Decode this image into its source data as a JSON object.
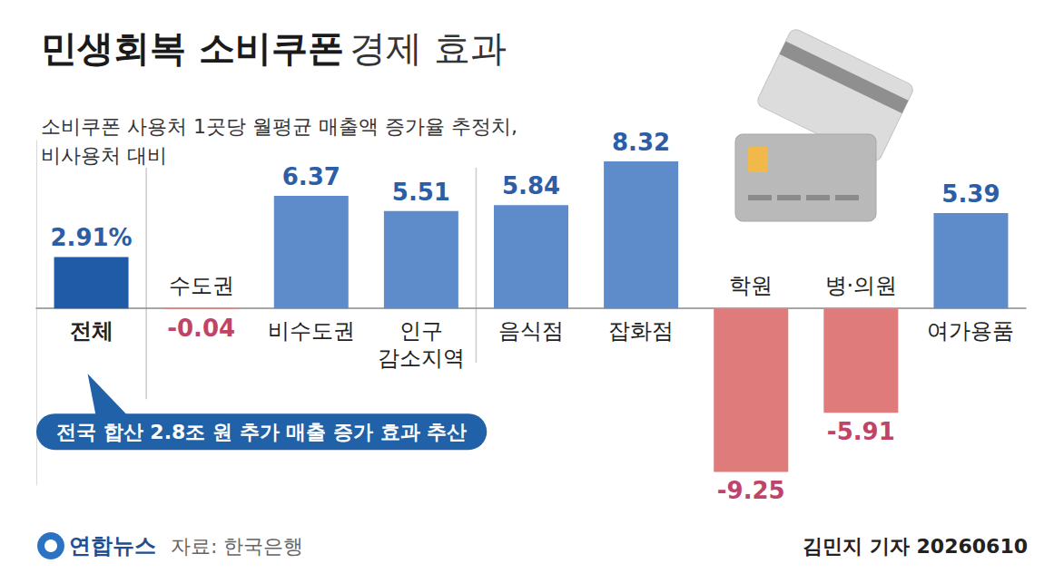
{
  "chart_data": {
    "type": "bar",
    "title": "민생회복 소비쿠폰 경제 효과",
    "subtitle": "소비쿠폰 사용처 1곳당 월평균 매출액 증가율 추정치,\n비사용처 대비",
    "categories": [
      "전체",
      "수도권",
      "비수도권",
      "인구 감소지역",
      "음식점",
      "잡화점",
      "학원",
      "병·의원",
      "여가용품"
    ],
    "values": [
      2.91,
      -0.04,
      6.37,
      5.51,
      5.84,
      8.32,
      -9.25,
      -5.91,
      5.39
    ],
    "value_labels": [
      "2.91%",
      "-0.04",
      "6.37",
      "5.51",
      "5.84",
      "8.32",
      "-9.25",
      "-5.91",
      "5.39"
    ],
    "colors": [
      "#1f5ba6",
      "#e07b7b",
      "#5e8ccb",
      "#5e8ccb",
      "#5e8ccb",
      "#5e8ccb",
      "#e07b7b",
      "#e07b7b",
      "#5e8ccb"
    ],
    "ylim": [
      -10,
      9.5
    ],
    "grid": false,
    "data_labels": true,
    "tick_labels": "x",
    "annotation": "전국 합산 2.8조 원 추가 매출 증가 효과 추산",
    "publisher": "연합뉴스",
    "source": "자료: 한국은행",
    "credit": "김민지 기자 20260610"
  }
}
